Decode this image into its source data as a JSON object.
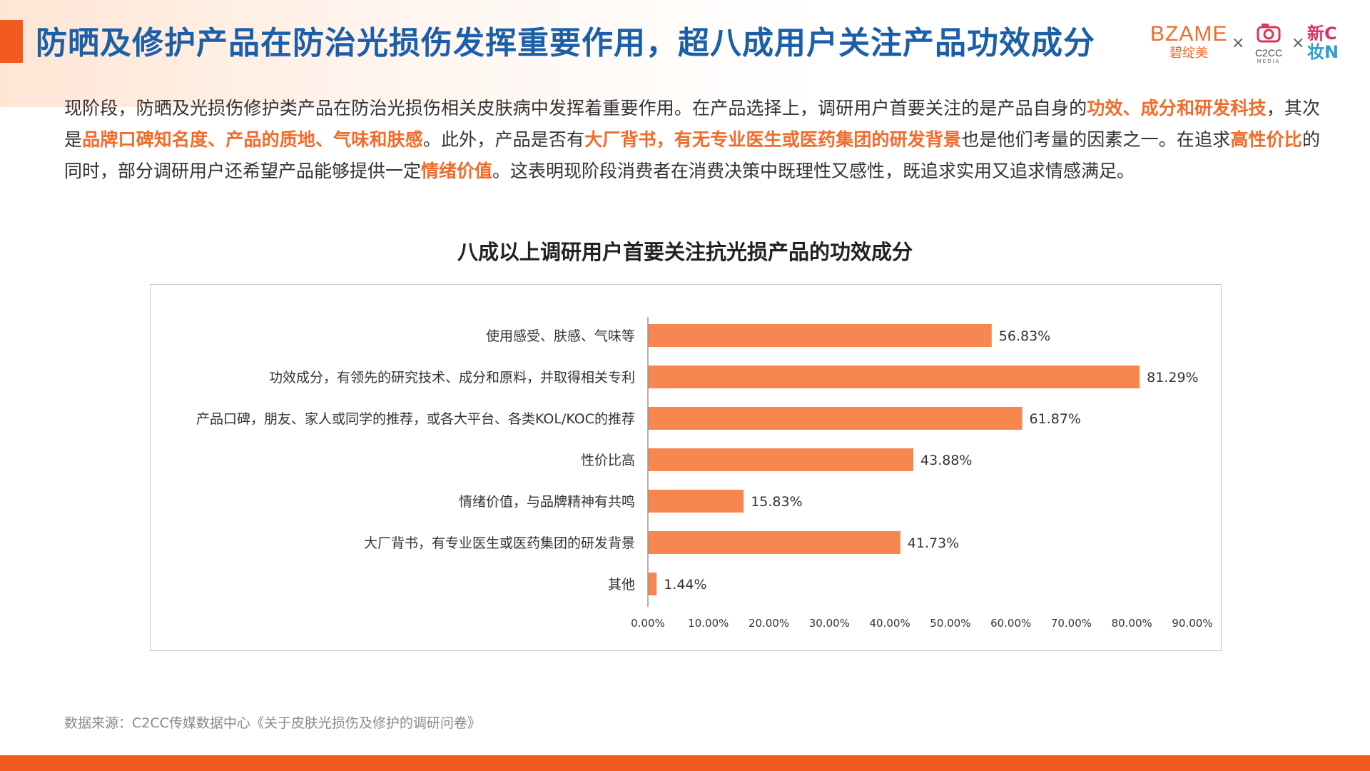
{
  "header": {
    "title": "防晒及修护产品在防治光损伤发挥重要作用，超八成用户关注产品功效成分",
    "logos": {
      "bzame_en": "BZAME",
      "bzame_cn": "碧绽美",
      "x1": "×",
      "c2cc": "C2CC",
      "c2cc_sub": "MEDIA",
      "x2": "×",
      "xin_1": "新C",
      "xin_2": "妆N"
    }
  },
  "intro": {
    "segments": [
      {
        "text": "现阶段，防晒及光损伤修护类产品在防治光损伤相关皮肤病中发挥着重要作用。在产品选择上，调研用户首要关注的是产品自身的",
        "highlight": false
      },
      {
        "text": "功效、成分和研发科技",
        "highlight": true
      },
      {
        "text": "，其次是",
        "highlight": false
      },
      {
        "text": "品牌口碑知名度、产品的质地、气味和肤感",
        "highlight": true
      },
      {
        "text": "。此外，产品是否有",
        "highlight": false
      },
      {
        "text": "大厂背书，有无专业医生或医药集团的研发背景",
        "highlight": true
      },
      {
        "text": "也是他们考量的因素之一。在追求",
        "highlight": false
      },
      {
        "text": "高性价比",
        "highlight": true
      },
      {
        "text": "的同时，部分调研用户还希望产品能够提供一定",
        "highlight": false
      },
      {
        "text": "情绪价值",
        "highlight": true
      },
      {
        "text": "。这表明现阶段消费者在消费决策中既理性又感性，既追求实用又追求情感满足。",
        "highlight": false
      }
    ]
  },
  "chart_data": {
    "type": "bar",
    "orientation": "horizontal",
    "title": "八成以上调研用户首要关注抗光损产品的功效成分",
    "categories": [
      "使用感受、肤感、气味等",
      "功效成分，有领先的研究技术、成分和原料，并取得相关专利",
      "产品口碑，朋友、家人或同学的推荐，或各大平台、各类KOL/KOC的推荐",
      "性价比高",
      "情绪价值，与品牌精神有共鸣",
      "大厂背书，有专业医生或医药集团的研发背景",
      "其他"
    ],
    "values": [
      56.83,
      81.29,
      61.87,
      43.88,
      15.83,
      41.73,
      1.44
    ],
    "value_labels": [
      "56.83%",
      "81.29%",
      "61.87%",
      "43.88%",
      "15.83%",
      "41.73%",
      "1.44%"
    ],
    "xlim": [
      0,
      90
    ],
    "x_ticks": [
      "0.00%",
      "10.00%",
      "20.00%",
      "30.00%",
      "40.00%",
      "50.00%",
      "60.00%",
      "70.00%",
      "80.00%",
      "90.00%"
    ],
    "bar_color": "#f7874f",
    "grid": false,
    "legend": "none"
  },
  "footer": {
    "source": "数据来源：C2CC传媒数据中心《关于皮肤光损伤及修护的调研问卷》"
  },
  "colors": {
    "accent": "#f25a1f",
    "title_blue": "#1a5fa8",
    "highlight": "#f26b2a",
    "bar": "#f7874f"
  }
}
